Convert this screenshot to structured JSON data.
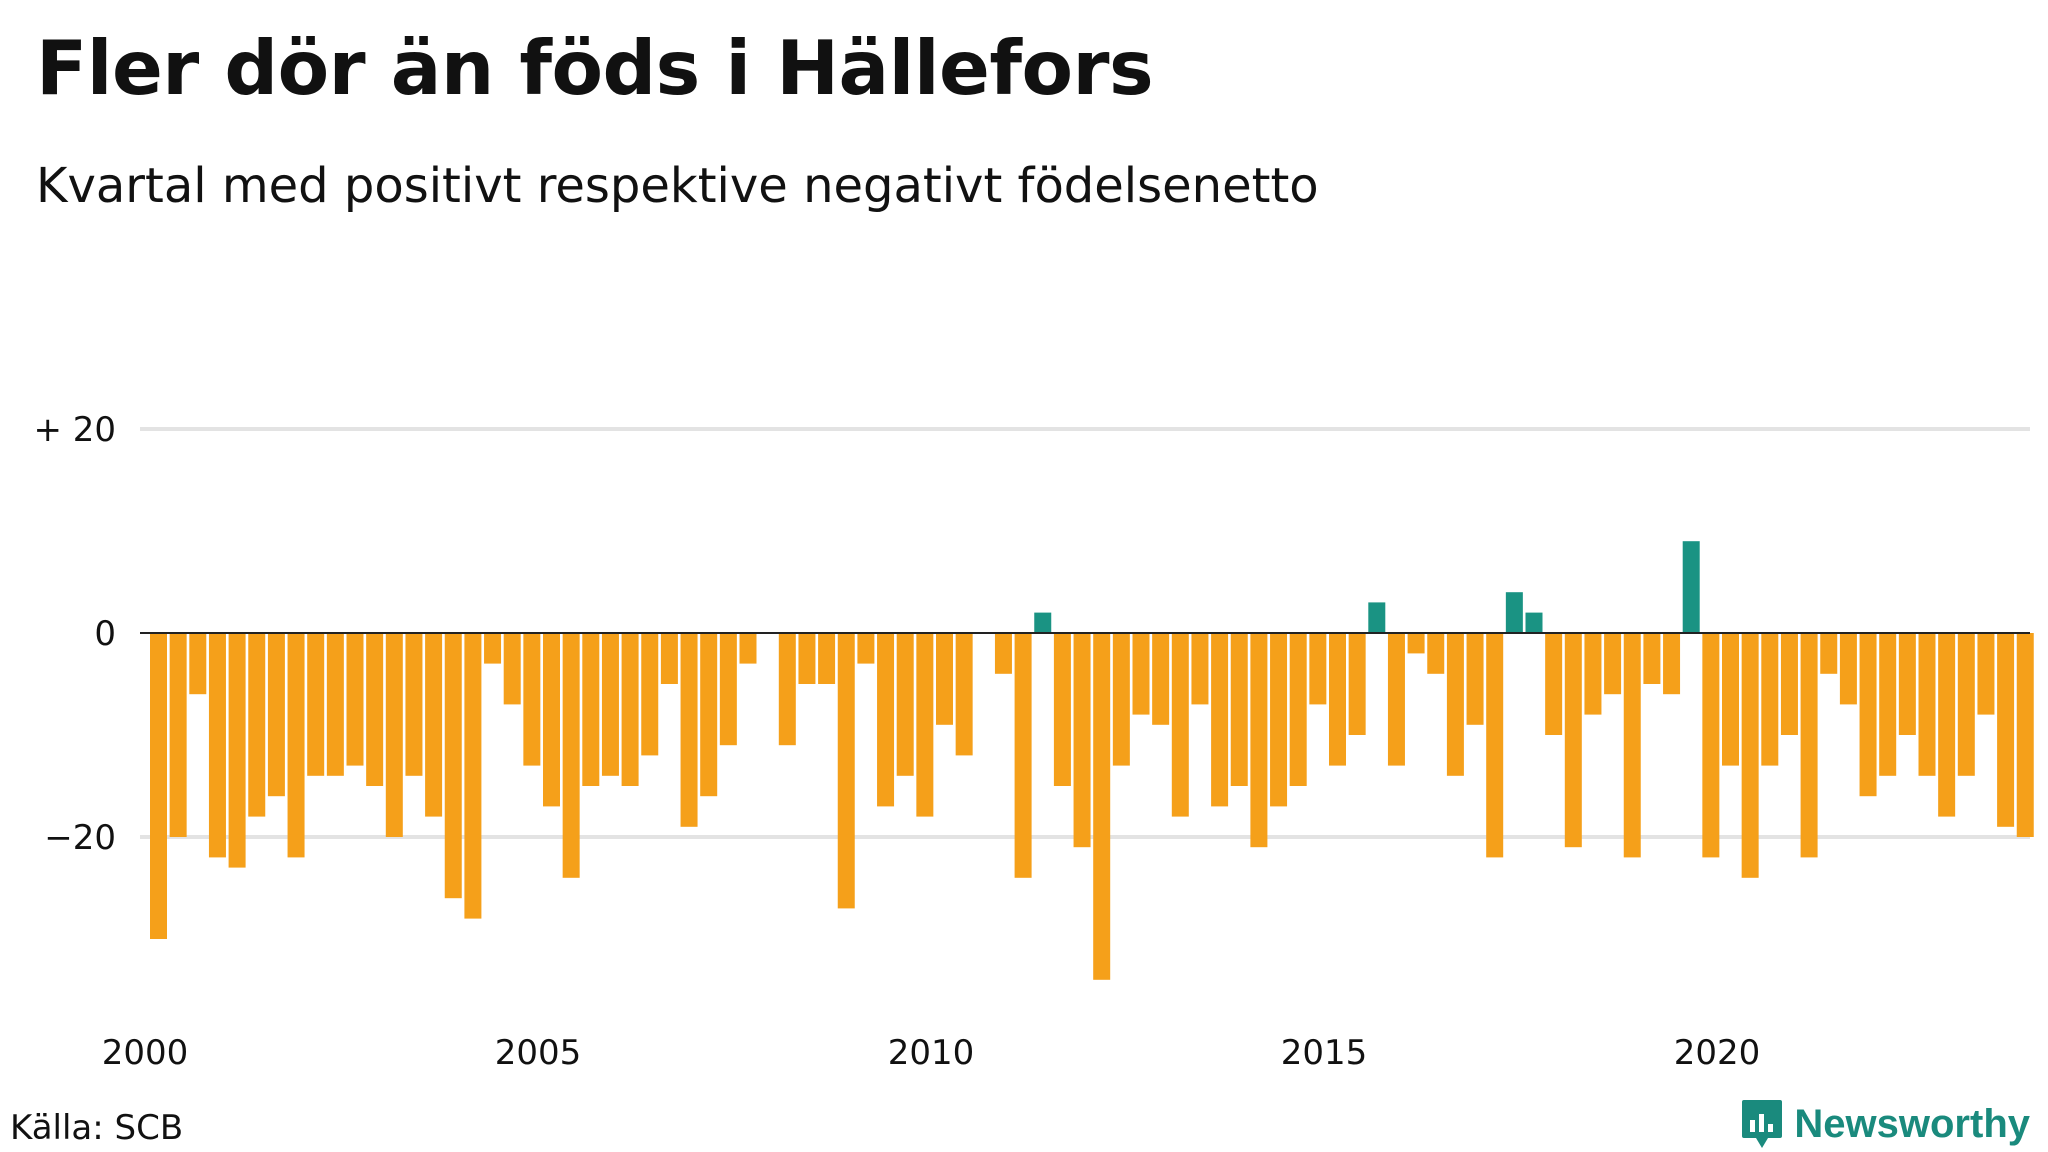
{
  "title": "Fler dör än föds i Hällefors",
  "subtitle": "Kvartal med positivt respektive negativt födelsenetto",
  "source": "Källa: SCB",
  "brand": {
    "name": "Newsworthy",
    "color": "#1a8a7d"
  },
  "colors": {
    "positive": "#1a9383",
    "negative": "#f5a01a",
    "grid": "#e3e3e3",
    "zero_line": "#222222"
  },
  "chart_data": {
    "type": "bar",
    "x_start": "2000 Q1",
    "ylim": [
      -36,
      30
    ],
    "y_ticks": [
      {
        "value": 20,
        "label": "+ 20"
      },
      {
        "value": 0,
        "label": "0"
      },
      {
        "value": -20,
        "label": "−20"
      }
    ],
    "x_ticks": [
      "2000",
      "2005",
      "2010",
      "2015",
      "2020"
    ],
    "grid": true,
    "values": [
      -30,
      -20,
      -6,
      -22,
      -23,
      -18,
      -16,
      -22,
      -14,
      -14,
      -13,
      -15,
      -20,
      -14,
      -18,
      -26,
      -28,
      -3,
      -7,
      -13,
      -17,
      -24,
      -15,
      -14,
      -15,
      -12,
      -5,
      -19,
      -16,
      -11,
      -3,
      0,
      -11,
      -5,
      -5,
      -27,
      -3,
      -17,
      -14,
      -18,
      -9,
      -12,
      0,
      -4,
      -24,
      2,
      -15,
      -21,
      -34,
      -13,
      -8,
      -9,
      -18,
      -7,
      -17,
      -15,
      -21,
      -17,
      -15,
      -7,
      -13,
      -10,
      3,
      -13,
      -2,
      -4,
      -14,
      -9,
      -22,
      4,
      2,
      -10,
      -21,
      -8,
      -6,
      -22,
      -5,
      -6,
      9,
      -22,
      -13,
      -24,
      -13,
      -10,
      -22,
      -4,
      -7,
      -16,
      -14,
      -10,
      -14,
      -18,
      -14,
      -8,
      -19,
      -20
    ]
  }
}
